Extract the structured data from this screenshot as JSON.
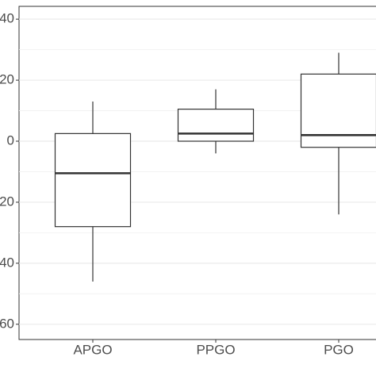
{
  "chart_data": {
    "type": "box",
    "categories": [
      "APGO",
      "PPGO",
      "PGO"
    ],
    "series": [
      {
        "color": "#333333",
        "fill": "#ffffff",
        "min": [
          -46,
          -4,
          -24
        ],
        "q1": [
          -28,
          0,
          -2
        ],
        "median": [
          -10.5,
          2.5,
          2
        ],
        "q3": [
          2.5,
          10.5,
          22
        ],
        "max": [
          13,
          17,
          29
        ]
      }
    ],
    "ylim": [
      -65,
      44.2
    ],
    "yticks": [
      {
        "value": 40,
        "label": "40"
      },
      {
        "value": 20,
        "label": "20"
      },
      0,
      {
        "value": -20,
        "label": "20"
      },
      {
        "value": -40,
        "label": "40"
      },
      {
        "value": -60,
        "label": "60"
      }
    ],
    "minor_yticks": [
      30,
      10,
      -10,
      -30,
      -50
    ],
    "grid": true
  }
}
